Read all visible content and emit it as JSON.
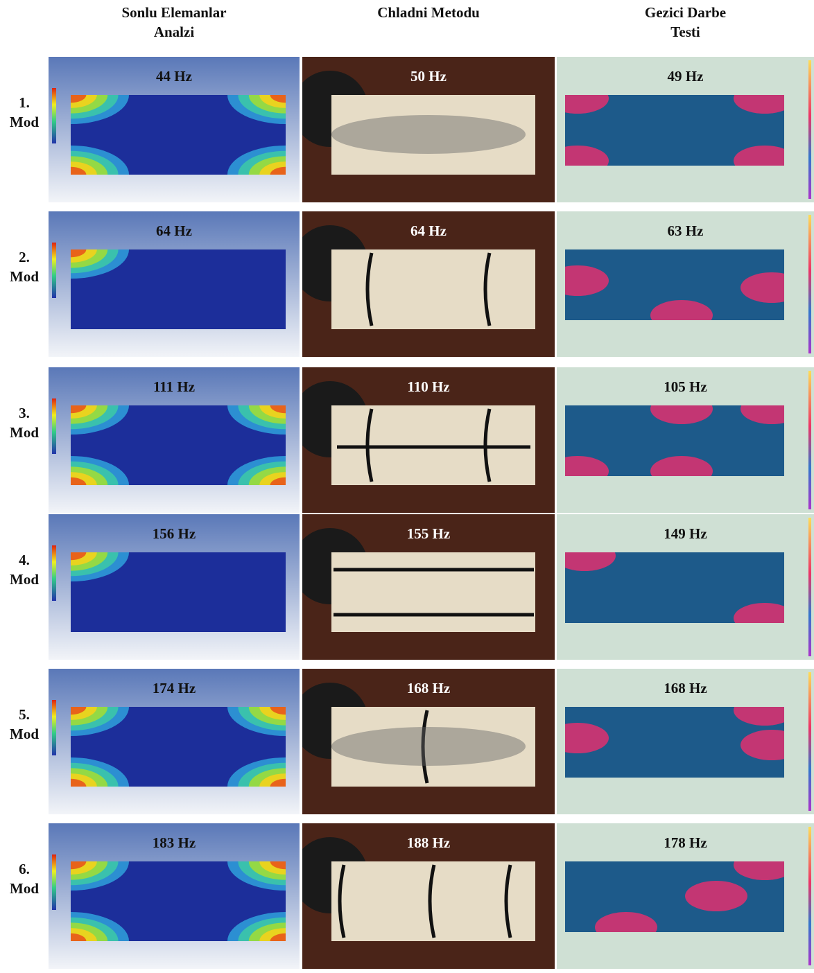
{
  "columns": [
    [
      "Sonlu Elemanlar",
      "Analzi"
    ],
    [
      "Chladni Metodu"
    ],
    [
      "Gezici Darbe",
      "Testi"
    ]
  ],
  "rows": [
    {
      "label": [
        "1.",
        "Mod"
      ],
      "cells": [
        "44 Hz",
        "50 Hz",
        "49 Hz"
      ]
    },
    {
      "label": [
        "2.",
        "Mod"
      ],
      "cells": [
        "64 Hz",
        "64 Hz",
        "63 Hz"
      ]
    },
    {
      "label": [
        "3.",
        "Mod"
      ],
      "cells": [
        "111 Hz",
        "110 Hz",
        "105 Hz"
      ]
    },
    {
      "label": [
        "4.",
        "Mod"
      ],
      "cells": [
        "156 Hz",
        "155 Hz",
        "149 Hz"
      ]
    },
    {
      "label": [
        "5.",
        "Mod"
      ],
      "cells": [
        "174 Hz",
        "168 Hz",
        "168 Hz"
      ]
    },
    {
      "label": [
        "6.",
        "Mod"
      ],
      "cells": [
        "183 Hz",
        "188 Hz",
        "178 Hz"
      ]
    }
  ]
}
